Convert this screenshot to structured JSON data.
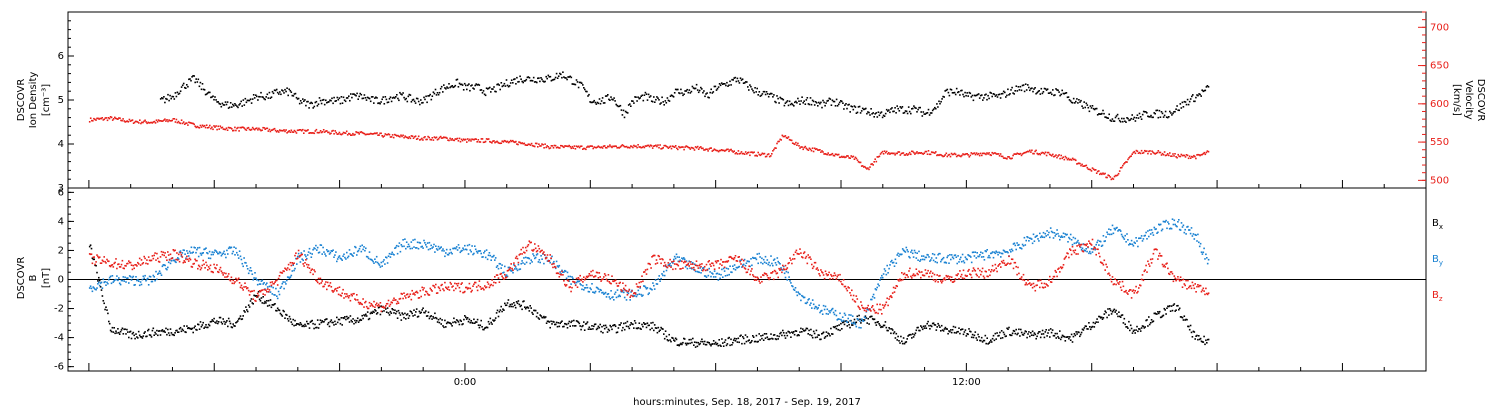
{
  "figure": {
    "xlabel": "hours:minutes, Sep. 18, 2017 - Sep. 19, 2017",
    "x_tick_labels": [
      "0:00",
      "12:00"
    ],
    "x_range_hours": [
      -9.5,
      23.0
    ]
  },
  "chart_data": [
    {
      "type": "scatter",
      "panel": "top",
      "ylabel_left": [
        "DSCOVR",
        "Ion Density",
        "[cm⁻³]"
      ],
      "ylabel_right": [
        "DSCOVR",
        "Velocity",
        "[km/s]"
      ],
      "y_left_range": [
        3.0,
        7.0
      ],
      "y_left_ticks": [
        "3",
        "4",
        "5",
        "6"
      ],
      "y_right_range": [
        490,
        720
      ],
      "y_right_ticks": [
        "500",
        "550",
        "600",
        "650",
        "700"
      ],
      "series": [
        {
          "color": "#000000",
          "axis": "left",
          "x_hours": [
            -7.3,
            -7.0,
            -6.8,
            -6.5,
            -6.2,
            -6.0,
            -5.7,
            -5.5,
            -5.2,
            -5.0,
            -4.7,
            -4.5,
            -4.2,
            -4.0,
            -3.7,
            -3.5,
            -3.2,
            -3.0,
            -2.7,
            -2.5,
            -2.2,
            -2.0,
            -1.7,
            -1.5,
            -1.2,
            -1.0,
            -0.7,
            -0.5,
            -0.2,
            0.0,
            0.3,
            0.5,
            0.8,
            1.0,
            1.3,
            1.5,
            1.8,
            2.0,
            2.3,
            2.5,
            2.8,
            3.0,
            3.3,
            3.5,
            3.8,
            4.0,
            4.3,
            4.5,
            4.8,
            5.0,
            5.3,
            5.5,
            5.8,
            6.0,
            6.3,
            6.5,
            6.8,
            7.0,
            7.3,
            7.5,
            7.8,
            8.0,
            8.3,
            8.5,
            8.8,
            9.0,
            9.3,
            9.5,
            9.8,
            10.0,
            10.3,
            10.5,
            10.8,
            11.0,
            11.3,
            11.5,
            11.8,
            12.0,
            12.3,
            12.5,
            12.8,
            13.0,
            13.3,
            13.5,
            13.8,
            14.0,
            14.3,
            14.5,
            14.8,
            15.0,
            15.3,
            15.5,
            15.8,
            16.0,
            16.3,
            16.5,
            16.8,
            17.0,
            17.3,
            17.5,
            17.8
          ],
          "values": [
            5.0,
            5.1,
            5.3,
            5.5,
            5.2,
            5.0,
            4.9,
            4.9,
            5.0,
            5.1,
            5.1,
            5.2,
            5.2,
            5.0,
            4.9,
            5.0,
            5.0,
            5.0,
            5.1,
            5.1,
            5.0,
            5.0,
            5.1,
            5.1,
            5.0,
            5.0,
            5.2,
            5.3,
            5.4,
            5.3,
            5.3,
            5.2,
            5.3,
            5.4,
            5.5,
            5.5,
            5.5,
            5.5,
            5.6,
            5.5,
            5.3,
            5.0,
            5.0,
            5.1,
            4.7,
            5.0,
            5.1,
            5.0,
            5.0,
            5.2,
            5.2,
            5.3,
            5.1,
            5.3,
            5.4,
            5.5,
            5.3,
            5.2,
            5.1,
            5.0,
            4.9,
            5.0,
            5.0,
            4.9,
            5.0,
            4.9,
            4.8,
            4.8,
            4.7,
            4.7,
            4.8,
            4.8,
            4.8,
            4.7,
            4.9,
            5.2,
            5.2,
            5.1,
            5.1,
            5.1,
            5.1,
            5.2,
            5.3,
            5.3,
            5.2,
            5.2,
            5.2,
            5.0,
            4.9,
            4.8,
            4.7,
            4.6,
            4.6,
            4.6,
            4.7,
            4.7,
            4.7,
            4.8,
            5.0,
            5.1,
            5.3
          ]
        },
        {
          "color": "#e8201a",
          "axis": "right",
          "x_hours": [
            -9.0,
            -8.5,
            -8.0,
            -7.5,
            -7.0,
            -6.5,
            -6.0,
            -5.5,
            -5.0,
            -4.5,
            -4.0,
            -3.5,
            -3.0,
            -2.5,
            -2.0,
            -1.5,
            -1.0,
            -0.5,
            0.0,
            0.5,
            1.0,
            1.5,
            2.0,
            2.5,
            3.0,
            3.5,
            4.0,
            4.5,
            5.0,
            5.5,
            6.0,
            6.5,
            7.0,
            7.3,
            7.6,
            8.0,
            8.5,
            9.0,
            9.3,
            9.6,
            10.0,
            10.5,
            11.0,
            11.5,
            12.0,
            12.5,
            13.0,
            13.5,
            14.0,
            14.5,
            15.0,
            15.5,
            16.0,
            16.5,
            17.0,
            17.5,
            17.8
          ],
          "values": [
            580,
            582,
            578,
            577,
            580,
            573,
            570,
            568,
            568,
            566,
            565,
            565,
            563,
            562,
            560,
            558,
            556,
            556,
            553,
            553,
            551,
            549,
            545,
            544,
            544,
            545,
            546,
            545,
            544,
            543,
            541,
            538,
            535,
            534,
            560,
            545,
            539,
            532,
            530,
            515,
            538,
            536,
            538,
            534,
            534,
            537,
            531,
            539,
            535,
            528,
            515,
            503,
            538,
            538,
            533,
            532,
            538
          ]
        }
      ]
    },
    {
      "type": "scatter",
      "panel": "bottom",
      "ylabel_left": [
        "DSCOVR",
        "B",
        "[nT]"
      ],
      "y_range": [
        -6.3,
        6.3
      ],
      "y_ticks": [
        "-6",
        "-4",
        "-2",
        "0",
        "2",
        "4",
        "6"
      ],
      "zero_line": true,
      "series": [
        {
          "name": "B",
          "subscript": "x",
          "color": "#000000",
          "x_hours": [
            -9.0,
            -8.5,
            -8.0,
            -7.5,
            -7.0,
            -6.5,
            -6.0,
            -5.5,
            -5.0,
            -4.5,
            -4.0,
            -3.5,
            -3.0,
            -2.5,
            -2.0,
            -1.5,
            -1.0,
            -0.5,
            0.0,
            0.5,
            1.0,
            1.5,
            2.0,
            2.5,
            3.0,
            3.5,
            4.0,
            4.5,
            5.0,
            5.5,
            6.0,
            6.5,
            7.0,
            7.5,
            8.0,
            8.5,
            9.0,
            9.5,
            10.0,
            10.5,
            11.0,
            11.5,
            12.0,
            12.5,
            13.0,
            13.5,
            14.0,
            14.5,
            15.0,
            15.5,
            16.0,
            16.5,
            17.0,
            17.5,
            17.8
          ],
          "values": [
            2.5,
            -3.3,
            -3.8,
            -3.6,
            -3.5,
            -3.3,
            -2.8,
            -3.0,
            -1.0,
            -2.0,
            -3.2,
            -3.0,
            -2.8,
            -2.7,
            -2.0,
            -2.5,
            -2.1,
            -3.0,
            -2.7,
            -3.2,
            -1.5,
            -1.8,
            -3.0,
            -3.0,
            -3.2,
            -3.4,
            -3.0,
            -3.2,
            -4.2,
            -4.3,
            -4.4,
            -4.1,
            -4.0,
            -3.8,
            -3.5,
            -3.8,
            -3.2,
            -2.6,
            -3.0,
            -4.3,
            -3.0,
            -3.4,
            -3.6,
            -4.1,
            -3.5,
            -3.8,
            -3.6,
            -4.0,
            -3.0,
            -2.0,
            -3.5,
            -2.5,
            -1.8,
            -4.1,
            -4.2
          ]
        },
        {
          "name": "B",
          "subscript": "y",
          "color": "#1a82d2",
          "x_hours": [
            -9.0,
            -8.5,
            -8.0,
            -7.5,
            -7.0,
            -6.5,
            -6.0,
            -5.5,
            -5.0,
            -4.5,
            -4.0,
            -3.5,
            -3.0,
            -2.5,
            -2.0,
            -1.5,
            -1.0,
            -0.5,
            0.0,
            0.5,
            1.0,
            1.5,
            2.0,
            2.5,
            3.0,
            3.5,
            4.0,
            4.5,
            5.0,
            5.5,
            6.0,
            6.5,
            7.0,
            7.5,
            8.0,
            8.5,
            9.0,
            9.5,
            10.0,
            10.5,
            11.0,
            11.5,
            12.0,
            12.5,
            13.0,
            13.5,
            14.0,
            14.5,
            15.0,
            15.5,
            16.0,
            16.5,
            17.0,
            17.5,
            17.8
          ],
          "values": [
            -0.5,
            0.0,
            0.0,
            0.0,
            1.5,
            2.0,
            1.8,
            2.0,
            0.0,
            -1.0,
            1.5,
            2.2,
            1.5,
            2.2,
            1.0,
            2.5,
            2.5,
            2.0,
            2.2,
            1.8,
            0.5,
            1.5,
            1.5,
            0.0,
            -0.5,
            -1.0,
            -1.0,
            -0.5,
            1.5,
            0.8,
            0.3,
            1.0,
            1.5,
            1.2,
            -1.0,
            -2.0,
            -2.5,
            -3.0,
            0.5,
            2.0,
            1.5,
            1.5,
            1.5,
            1.8,
            2.0,
            2.8,
            3.3,
            2.8,
            2.0,
            3.5,
            2.5,
            3.5,
            4.0,
            3.0,
            1.0
          ]
        },
        {
          "name": "B",
          "subscript": "z",
          "color": "#e8201a",
          "x_hours": [
            -9.0,
            -8.5,
            -8.0,
            -7.5,
            -7.0,
            -6.5,
            -6.0,
            -5.5,
            -5.0,
            -4.5,
            -4.0,
            -3.5,
            -3.0,
            -2.5,
            -2.0,
            -1.5,
            -1.0,
            -0.5,
            0.0,
            0.5,
            1.0,
            1.5,
            2.0,
            2.5,
            3.0,
            3.5,
            4.0,
            4.5,
            5.0,
            5.5,
            6.0,
            6.5,
            7.0,
            7.5,
            8.0,
            8.5,
            9.0,
            9.5,
            10.0,
            10.5,
            11.0,
            11.5,
            12.0,
            12.5,
            13.0,
            13.5,
            14.0,
            14.5,
            15.0,
            15.5,
            16.0,
            16.5,
            17.0,
            17.5,
            17.8
          ],
          "values": [
            1.5,
            1.2,
            1.0,
            1.5,
            1.8,
            1.2,
            0.8,
            0.0,
            -1.2,
            0.0,
            1.8,
            0.0,
            -0.8,
            -1.5,
            -1.8,
            -1.2,
            -0.8,
            -0.5,
            -0.5,
            -0.3,
            0.5,
            2.5,
            1.5,
            -0.5,
            0.5,
            0.0,
            -1.0,
            1.5,
            1.0,
            1.0,
            1.0,
            1.5,
            0.0,
            0.5,
            2.0,
            0.5,
            0.0,
            -2.0,
            -2.0,
            0.5,
            0.5,
            0.0,
            0.5,
            0.5,
            1.5,
            -0.5,
            0.0,
            2.0,
            2.5,
            0.0,
            -1.0,
            2.0,
            0.0,
            -0.5,
            -0.8
          ]
        }
      ]
    }
  ]
}
